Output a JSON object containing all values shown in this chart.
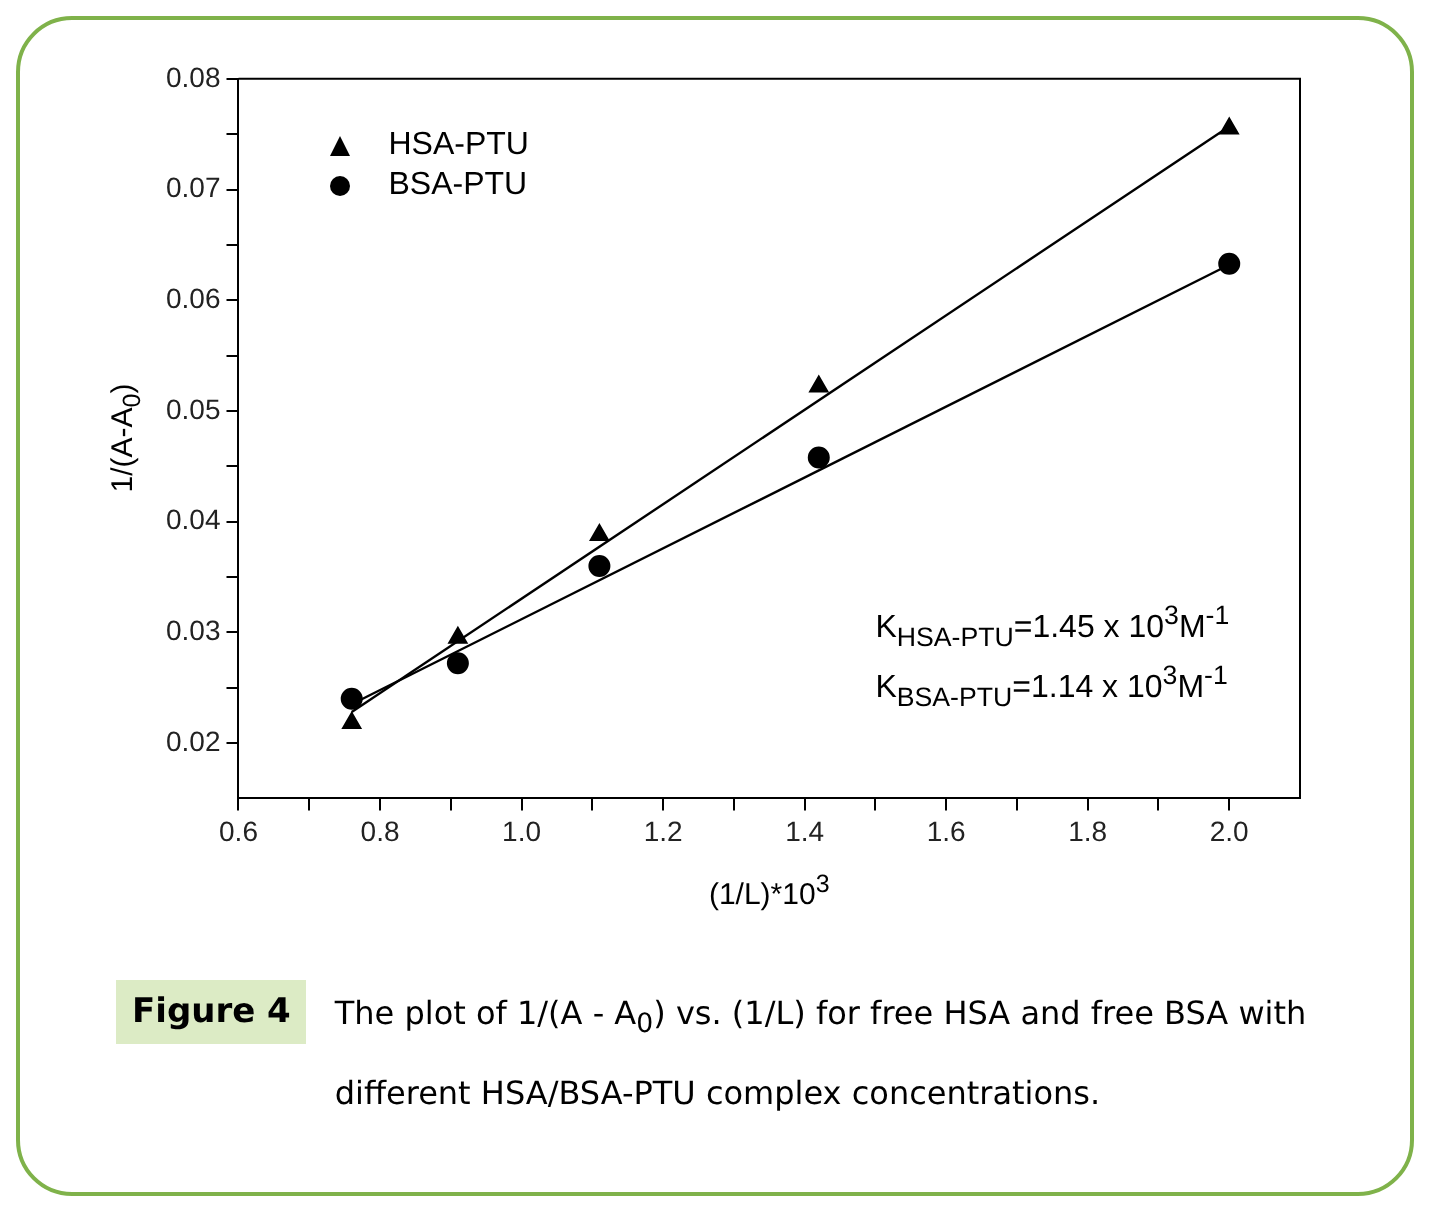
{
  "chart_data": {
    "type": "scatter",
    "xlabel": "(1/L)*10$^{3}$",
    "ylabel": "1/(A-A$_{0}$)",
    "xlim": [
      0.6,
      2.1
    ],
    "xticks": [
      0.6,
      {
        "value": 0.7,
        "label": null
      },
      0.8,
      {
        "value": 0.9,
        "label": null
      },
      "1.0",
      {
        "value": 1.1,
        "label": null
      },
      1.2,
      {
        "value": 1.3,
        "label": null
      },
      1.4,
      {
        "value": 1.5,
        "label": null
      },
      1.6,
      {
        "value": 1.7,
        "label": null
      },
      1.8,
      {
        "value": 1.9,
        "label": null
      },
      "2.0"
    ],
    "ylim": [
      0.015,
      0.08
    ],
    "yticks": [
      {
        "value": 0.02,
        "label": "0.02"
      },
      {
        "value": 0.025,
        "label": null
      },
      {
        "value": 0.03,
        "label": "0.03"
      },
      {
        "value": 0.035,
        "label": null
      },
      {
        "value": 0.04,
        "label": "0.04"
      },
      {
        "value": 0.045,
        "label": null
      },
      {
        "value": 0.05,
        "label": "0.05"
      },
      {
        "value": 0.055,
        "label": null
      },
      {
        "value": 0.06,
        "label": "0.06"
      },
      {
        "value": 0.065,
        "label": null
      },
      {
        "value": 0.07,
        "label": "0.07"
      },
      {
        "value": 0.075,
        "label": null
      },
      {
        "value": 0.08,
        "label": "0.08"
      }
    ],
    "grid": false,
    "legend": "top left",
    "series": [
      {
        "name": "HSA-PTU",
        "type": "scatter",
        "marker": "triangle",
        "color": "#000000",
        "x": [
          0.76,
          0.91,
          1.11,
          1.42,
          2.0
        ],
        "values": [
          0.0218,
          0.0295,
          0.0388,
          0.0522,
          0.0755
        ]
      },
      {
        "name": "BSA-PTU",
        "type": "scatter",
        "marker": "circle",
        "color": "#000000",
        "x": [
          0.76,
          0.91,
          1.11,
          1.42,
          2.0
        ],
        "values": [
          0.024,
          0.0272,
          0.036,
          0.0458,
          0.0633
        ]
      },
      {
        "type": "line",
        "marker": "none",
        "color": "#000000",
        "x": [
          0.76,
          2.0
        ],
        "values": [
          0.0228,
          0.0757
        ]
      },
      {
        "type": "line",
        "marker": "none",
        "color": "#000000",
        "x": [
          0.76,
          2.0
        ],
        "values": [
          0.0235,
          0.0632
        ]
      }
    ],
    "annotations": [
      "K$_{HSA-PTU}$=1.45 x 10$^{3}$M$^{-1}$",
      "K$_{BSA-PTU}$=1.14 x 10$^{3}$M$^{-1}$",
      "Figure 4",
      "The plot of 1/(A - A$_{0}$) vs. (1/L) for free HSA and free BSA with different HSA/BSA-PTU complex concentrations."
    ]
  }
}
